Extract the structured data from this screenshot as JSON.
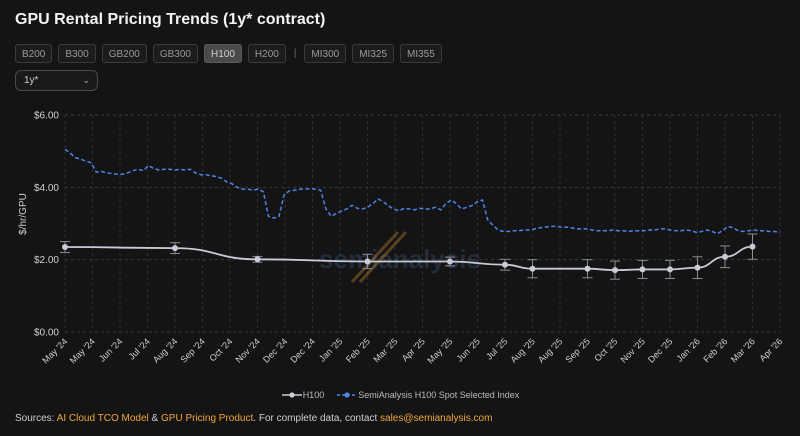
{
  "title": "GPU Rental Pricing Trends (1y* contract)",
  "tabs": [
    {
      "label": "B200",
      "active": false
    },
    {
      "label": "B300",
      "active": false
    },
    {
      "label": "GB200",
      "active": false
    },
    {
      "label": "GB300",
      "active": false
    },
    {
      "label": "H100",
      "active": true
    },
    {
      "label": "H200",
      "active": false
    }
  ],
  "tabs_amd": [
    {
      "label": "MI300",
      "active": false
    },
    {
      "label": "MI325",
      "active": false
    },
    {
      "label": "MI355",
      "active": false
    }
  ],
  "separator": "|",
  "contract_select": {
    "value": "1y*",
    "icon": "chevron-down-icon"
  },
  "watermark": "semianalysis",
  "footer": {
    "prefix": "Sources: ",
    "link1": "AI Cloud TCO Model",
    "amp": " & ",
    "link2": "GPU Pricing Product",
    "middle": ". For complete data, contact ",
    "email": "sales@semianalysis.com"
  },
  "chart_data": {
    "type": "line",
    "ylabel": "$/hr/GPU",
    "ylim": [
      0,
      6
    ],
    "yticks": [
      "$0.00",
      "$2.00",
      "$4.00",
      "$6.00"
    ],
    "ytick_values": [
      0,
      2,
      4,
      6
    ],
    "grid": true,
    "legend_position": "bottom",
    "x_ticks": [
      "May '24",
      "May '24",
      "Jun '24",
      "Jul '24",
      "Aug '24",
      "Sep '24",
      "Oct '24",
      "Nov '24",
      "Dec '24",
      "Dec '24",
      "Jan '25",
      "Feb '25",
      "Mar '25",
      "Apr '25",
      "May '25",
      "Jun '25",
      "Jul '25",
      "Aug '25",
      "Aug '25",
      "Sep '25",
      "Oct '25",
      "Nov '25",
      "Dec '25",
      "Jan '26",
      "Feb '26",
      "Mar '26",
      "Apr '26"
    ],
    "series": [
      {
        "name": "H100",
        "color": "#c9ccd6",
        "style": "solid",
        "points": [
          {
            "x": "May '24",
            "y": 2.35,
            "err": 0.15
          },
          {
            "x": "Aug '24",
            "y": 2.32,
            "err": 0.15
          },
          {
            "x": "Nov '24",
            "y": 2.01,
            "err": 0.08
          },
          {
            "x": "Feb '25",
            "y": 1.95,
            "err": 0.2
          },
          {
            "x": "May '25",
            "y": 1.95,
            "err": 0.12
          },
          {
            "x": "Jul '25",
            "y": 1.86,
            "err": 0.15
          },
          {
            "x": "Aug '25",
            "y": 1.75,
            "err": 0.25
          },
          {
            "x": "Sep '25",
            "y": 1.75,
            "err": 0.25
          },
          {
            "x": "Oct '25",
            "y": 1.71,
            "err": 0.25
          },
          {
            "x": "Nov '25",
            "y": 1.73,
            "err": 0.25
          },
          {
            "x": "Dec '25",
            "y": 1.73,
            "err": 0.25
          },
          {
            "x": "Jan '26",
            "y": 1.78,
            "err": 0.3
          },
          {
            "x": "Feb '26",
            "y": 2.08,
            "err": 0.3
          },
          {
            "x": "Mar '26",
            "y": 2.36,
            "err": 0.35
          }
        ]
      },
      {
        "name": "SemiAnalysis H100 Spot Selected Index",
        "color": "#4a86e8",
        "style": "dashed",
        "values": [
          5.05,
          4.95,
          4.82,
          4.78,
          4.72,
          4.68,
          4.42,
          4.44,
          4.4,
          4.38,
          4.36,
          4.36,
          4.4,
          4.46,
          4.5,
          4.46,
          4.6,
          4.52,
          4.48,
          4.5,
          4.5,
          4.48,
          4.5,
          4.48,
          4.5,
          4.4,
          4.35,
          4.35,
          4.32,
          4.3,
          4.25,
          4.15,
          4.1,
          4.0,
          3.95,
          3.95,
          3.92,
          3.95,
          3.88,
          3.2,
          3.15,
          3.2,
          3.8,
          3.9,
          3.92,
          3.95,
          3.95,
          3.96,
          3.95,
          3.92,
          3.4,
          3.2,
          3.28,
          3.35,
          3.4,
          3.5,
          3.42,
          3.4,
          3.45,
          3.55,
          3.68,
          3.6,
          3.48,
          3.4,
          3.35,
          3.42,
          3.4,
          3.38,
          3.42,
          3.4,
          3.4,
          3.45,
          3.38,
          3.55,
          3.65,
          3.55,
          3.4,
          3.45,
          3.5,
          3.6,
          3.65,
          3.1,
          2.95,
          2.82,
          2.78,
          2.78,
          2.8,
          2.8,
          2.82,
          2.82,
          2.85,
          2.88,
          2.9,
          2.92,
          2.92,
          2.9,
          2.9,
          2.88,
          2.85,
          2.85,
          2.85,
          2.82,
          2.8,
          2.8,
          2.8,
          2.82,
          2.8,
          2.8,
          2.78,
          2.8,
          2.8,
          2.8,
          2.82,
          2.82,
          2.85,
          2.85,
          2.82,
          2.8,
          2.8,
          2.82,
          2.8,
          2.75,
          2.78,
          2.82,
          2.78,
          2.72,
          2.8,
          2.92,
          2.88,
          2.8,
          2.78,
          2.8,
          2.82,
          2.8,
          2.8,
          2.78,
          2.78,
          2.75
        ]
      }
    ]
  }
}
